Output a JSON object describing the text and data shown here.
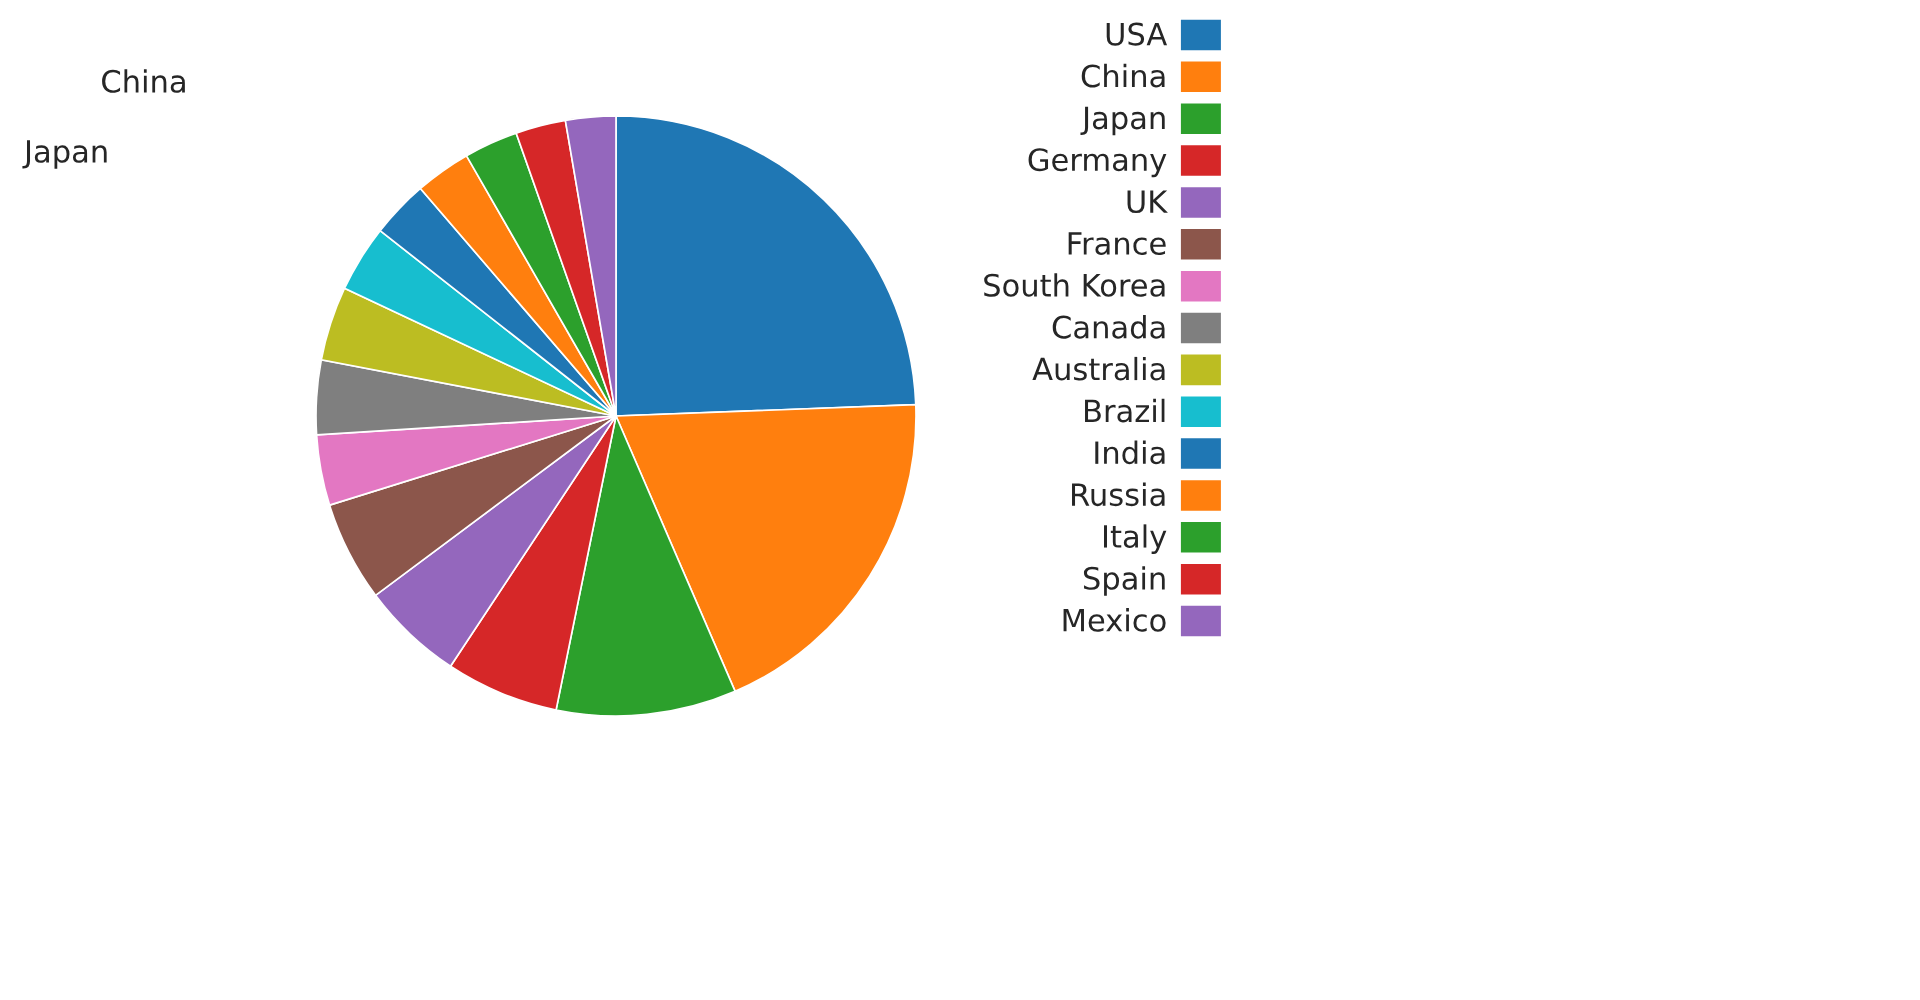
{
  "chart_data": {
    "type": "pie",
    "categories": [
      "USA",
      "China",
      "Japan",
      "Germany",
      "UK",
      "France",
      "South Korea",
      "Canada",
      "Australia",
      "Brazil",
      "India",
      "Russia",
      "Italy",
      "Spain",
      "Mexico"
    ],
    "values": [
      24.4,
      19.1,
      9.7,
      6.1,
      5.5,
      5.4,
      3.8,
      4.0,
      4.0,
      3.6,
      3.1,
      3.0,
      2.9,
      2.7,
      2.7
    ],
    "colors": [
      "#1f77b4",
      "#ff7f0e",
      "#2ca02c",
      "#d62728",
      "#9467bd",
      "#8c564b",
      "#e377c2",
      "#7f7f7f",
      "#bcbd22",
      "#17becf",
      "#1f77b4",
      "#ff7f0e",
      "#2ca02c",
      "#d62728",
      "#9467bd"
    ],
    "annotations": [
      "China",
      "Japan"
    ],
    "legend": "top right"
  }
}
